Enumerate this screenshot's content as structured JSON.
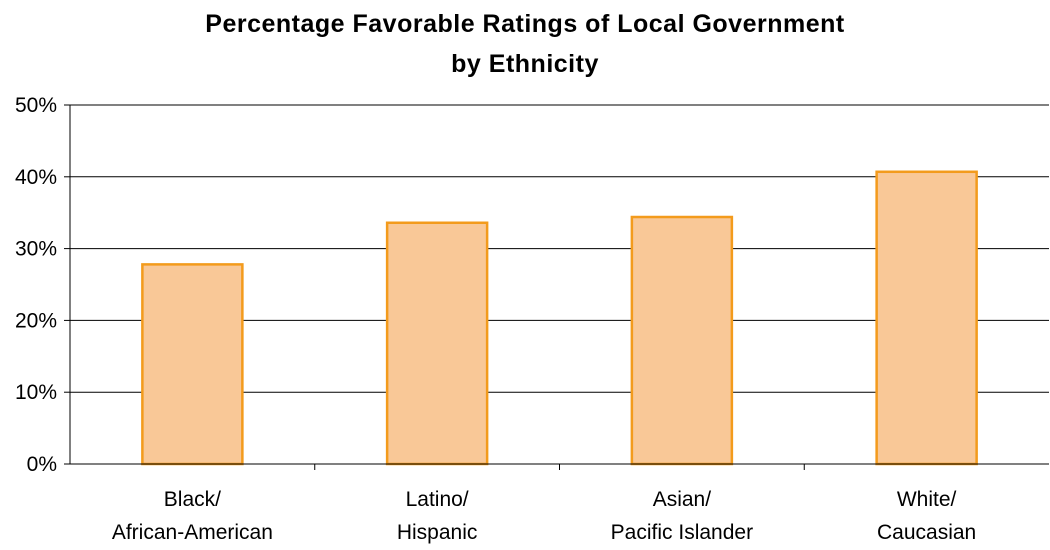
{
  "chart_data": {
    "type": "bar",
    "title_lines": [
      "Percentage Favorable Ratings of Local Government",
      "by Ethnicity"
    ],
    "categories": [
      [
        "Black/",
        "African-American"
      ],
      [
        "Latino/",
        "Hispanic"
      ],
      [
        "Asian/",
        "Pacific Islander"
      ],
      [
        "White/",
        "Caucasian"
      ]
    ],
    "values": [
      27.8,
      33.6,
      34.4,
      40.7
    ],
    "ylim": [
      0,
      50
    ],
    "yticks": [
      0,
      10,
      20,
      30,
      40,
      50
    ],
    "ytick_labels": [
      "0%",
      "10%",
      "20%",
      "30%",
      "40%",
      "50%"
    ],
    "xlabel": "",
    "ylabel": "",
    "grid": true,
    "colors": {
      "bar_fill": "#f9c897",
      "bar_stroke": "#f39b1c",
      "gridline": "#000000",
      "axis": "#000000"
    }
  }
}
